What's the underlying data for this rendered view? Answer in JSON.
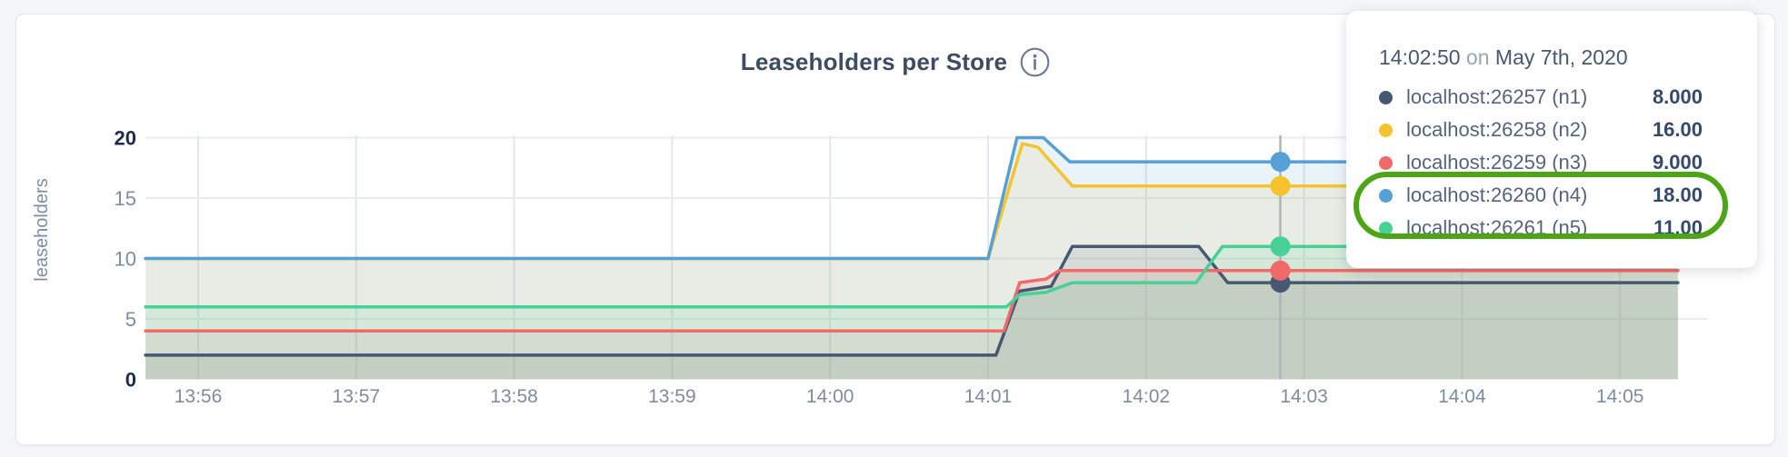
{
  "chart_data": {
    "type": "area",
    "title": "Leaseholders per Store",
    "ylabel": "leaseholders",
    "xlabel": "",
    "ylim": [
      0,
      20
    ],
    "yticks": [
      0,
      5,
      10,
      15,
      20
    ],
    "xticks": [
      "13:56",
      "13:57",
      "13:58",
      "13:59",
      "14:00",
      "14:01",
      "14:02",
      "14:03",
      "14:04",
      "14:05"
    ],
    "x_tick_interval_seconds": 60,
    "x_domain_seconds": [
      -20,
      562
    ],
    "grid": true,
    "legend_position": "tooltip-overlay",
    "fill_opacity": 0.12,
    "series": [
      {
        "name": "localhost:26257 (n1)",
        "color": "#475872",
        "points": [
          [
            -20,
            2
          ],
          [
            303,
            2
          ],
          [
            312,
            7.3
          ],
          [
            324,
            7.7
          ],
          [
            332,
            11
          ],
          [
            380,
            11
          ],
          [
            391,
            8
          ],
          [
            562,
            8
          ]
        ]
      },
      {
        "name": "localhost:26258 (n2)",
        "color": "#f6c32f",
        "points": [
          [
            -20,
            10
          ],
          [
            300,
            10
          ],
          [
            313,
            19.5
          ],
          [
            319,
            19.2
          ],
          [
            332,
            16
          ],
          [
            562,
            16
          ]
        ]
      },
      {
        "name": "localhost:26259 (n3)",
        "color": "#f16969",
        "points": [
          [
            -20,
            4
          ],
          [
            306,
            4
          ],
          [
            312,
            8
          ],
          [
            322,
            8.3
          ],
          [
            327,
            9
          ],
          [
            562,
            9
          ]
        ]
      },
      {
        "name": "localhost:26260 (n4)",
        "color": "#55a0d5",
        "points": [
          [
            -20,
            10
          ],
          [
            300,
            10
          ],
          [
            311,
            20
          ],
          [
            321,
            20
          ],
          [
            331,
            18
          ],
          [
            562,
            18
          ]
        ]
      },
      {
        "name": "localhost:26261 (n5)",
        "color": "#45d294",
        "points": [
          [
            -20,
            6
          ],
          [
            307,
            6
          ],
          [
            312,
            7
          ],
          [
            322,
            7.2
          ],
          [
            332,
            8
          ],
          [
            379,
            8
          ],
          [
            389,
            11
          ],
          [
            562,
            11
          ]
        ]
      }
    ]
  },
  "crosshair": {
    "label": "14:02:50",
    "time_seconds_after_1356": 411,
    "values": [
      8,
      16,
      9,
      18,
      11
    ]
  },
  "tooltip": {
    "time": "14:02:50",
    "preposition": "on",
    "date": "May 7th, 2020",
    "rows": [
      {
        "label": "localhost:26257 (n1)",
        "value": "8.000",
        "color": "#475872"
      },
      {
        "label": "localhost:26258 (n2)",
        "value": "16.00",
        "color": "#f6c32f"
      },
      {
        "label": "localhost:26259 (n3)",
        "value": "9.000",
        "color": "#f16969"
      },
      {
        "label": "localhost:26260 (n4)",
        "value": "18.00",
        "color": "#55a0d5"
      },
      {
        "label": "localhost:26261 (n5)",
        "value": "11.00",
        "color": "#45d294"
      }
    ],
    "highlight": {
      "rows": [
        3,
        4
      ],
      "color": "#4ba517",
      "shape": "stadium-ring"
    }
  },
  "icons": {
    "info": "i"
  }
}
